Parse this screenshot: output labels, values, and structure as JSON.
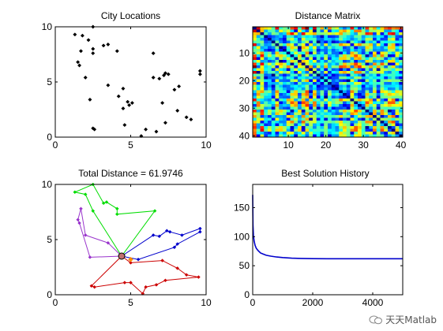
{
  "watermark": {
    "text": "天天Matlab",
    "icon": "wechat-icon"
  },
  "chart_data": [
    {
      "type": "scatter",
      "title": "City Locations",
      "xlim": [
        0,
        10
      ],
      "ylim": [
        0,
        10
      ],
      "xticks": [
        0,
        5,
        10
      ],
      "yticks": [
        0,
        5,
        10
      ],
      "marker_color": "#000000",
      "points": [
        [
          1.3,
          9.3
        ],
        [
          1.8,
          9.2
        ],
        [
          2.2,
          8.8
        ],
        [
          2.5,
          10
        ],
        [
          1.7,
          7.8
        ],
        [
          2.5,
          7.6
        ],
        [
          2.5,
          8
        ],
        [
          1.5,
          6.8
        ],
        [
          1.6,
          6.5
        ],
        [
          3.2,
          8.3
        ],
        [
          3.5,
          8.4
        ],
        [
          4.1,
          7.8
        ],
        [
          6.5,
          7.6
        ],
        [
          2,
          5.4
        ],
        [
          3.5,
          4.7
        ],
        [
          4.5,
          4.4
        ],
        [
          4.2,
          3.7
        ],
        [
          4.8,
          3.2
        ],
        [
          4.9,
          2.9
        ],
        [
          4.5,
          2.6
        ],
        [
          5.1,
          3.1
        ],
        [
          2.3,
          3.4
        ],
        [
          4.6,
          1.1
        ],
        [
          2.5,
          0.8
        ],
        [
          2.6,
          0.7
        ],
        [
          5.7,
          0.1
        ],
        [
          6,
          0.7
        ],
        [
          6.7,
          0.5
        ],
        [
          6.5,
          5.4
        ],
        [
          6.9,
          5.3
        ],
        [
          7.3,
          5.8
        ],
        [
          7.2,
          5.6
        ],
        [
          7.5,
          5.7
        ],
        [
          7.9,
          4.3
        ],
        [
          8.2,
          4.6
        ],
        [
          7.1,
          3.1
        ],
        [
          8.1,
          2.4
        ],
        [
          8.7,
          1.8
        ],
        [
          9,
          1.6
        ],
        [
          7.3,
          1.3
        ],
        [
          9.6,
          6
        ],
        [
          9.6,
          5.7
        ]
      ]
    },
    {
      "type": "heatmap",
      "title": "Distance Matrix",
      "xlim": [
        0.5,
        40.5
      ],
      "ylim": [
        0.5,
        40.5
      ],
      "xticks": [
        10,
        20,
        30,
        40
      ],
      "yticks": [
        10,
        20,
        30,
        40
      ],
      "size": 40,
      "colormap": "jet"
    },
    {
      "type": "line",
      "title": "Total Distance = 61.9746",
      "xlim": [
        0,
        10
      ],
      "ylim": [
        0,
        10
      ],
      "xticks": [
        0,
        5,
        10
      ],
      "yticks": [
        0,
        5,
        10
      ],
      "depot": [
        4.4,
        3.5
      ],
      "depot_color": "#c07070",
      "extra_marker": {
        "x": 5.0,
        "y": 3.2,
        "color": "#ff8c00"
      },
      "routes": [
        {
          "color": "#00dd00",
          "points": [
            [
              4.4,
              3.5
            ],
            [
              2.5,
              7.6
            ],
            [
              2,
              9.1
            ],
            [
              1.3,
              9.3
            ],
            [
              2.5,
              10
            ],
            [
              3.2,
              8.3
            ],
            [
              3.4,
              8.4
            ],
            [
              4.1,
              7.8
            ],
            [
              4.1,
              7.3
            ],
            [
              6.6,
              7.6
            ],
            [
              4.4,
              3.5
            ]
          ]
        },
        {
          "color": "#9933cc",
          "points": [
            [
              4.4,
              3.5
            ],
            [
              3.5,
              4.7
            ],
            [
              2,
              5.4
            ],
            [
              1.7,
              7.8
            ],
            [
              1.5,
              6.8
            ],
            [
              1.6,
              6.5
            ],
            [
              2.3,
              3.4
            ],
            [
              4.4,
              3.5
            ]
          ]
        },
        {
          "color": "#0000cc",
          "points": [
            [
              4.4,
              3.5
            ],
            [
              6.5,
              5.4
            ],
            [
              6.9,
              5.3
            ],
            [
              7.4,
              5.8
            ],
            [
              7.6,
              5.7
            ],
            [
              8.4,
              5.4
            ],
            [
              9.6,
              6
            ],
            [
              9.6,
              5.7
            ],
            [
              8.1,
              4.6
            ],
            [
              7.9,
              4.3
            ],
            [
              5.5,
              3.2
            ],
            [
              4.4,
              3.5
            ]
          ]
        },
        {
          "color": "#cc0000",
          "points": [
            [
              4.4,
              3.5
            ],
            [
              5,
              2.9
            ],
            [
              7.1,
              3.1
            ],
            [
              8.1,
              2.4
            ],
            [
              8.7,
              1.8
            ],
            [
              9.5,
              1.6
            ],
            [
              7.3,
              1.3
            ],
            [
              6.7,
              0.9
            ],
            [
              6,
              0.7
            ],
            [
              5.8,
              0.1
            ],
            [
              5,
              1.1
            ],
            [
              4.6,
              1.1
            ],
            [
              2.6,
              0.7
            ],
            [
              2.4,
              0.8
            ],
            [
              4.4,
              3.5
            ]
          ]
        }
      ]
    },
    {
      "type": "line",
      "title": "Best Solution History",
      "xlim": [
        0,
        5000
      ],
      "ylim": [
        0,
        190
      ],
      "xticks": [
        0,
        2000,
        4000
      ],
      "yticks": [
        0,
        50,
        100,
        150
      ],
      "color": "#0000cc",
      "series": [
        {
          "x": [
            0,
            10,
            25,
            50,
            80,
            120,
            180,
            260,
            350,
            450,
            600,
            800,
            1000,
            1300,
            1600,
            2000,
            2500,
            3000,
            4000,
            5000
          ],
          "y": [
            172,
            120,
            102,
            92,
            85,
            80,
            76,
            72,
            70,
            68,
            66.5,
            65,
            64,
            63,
            62.5,
            62.2,
            62,
            62,
            62,
            62
          ]
        }
      ]
    }
  ]
}
